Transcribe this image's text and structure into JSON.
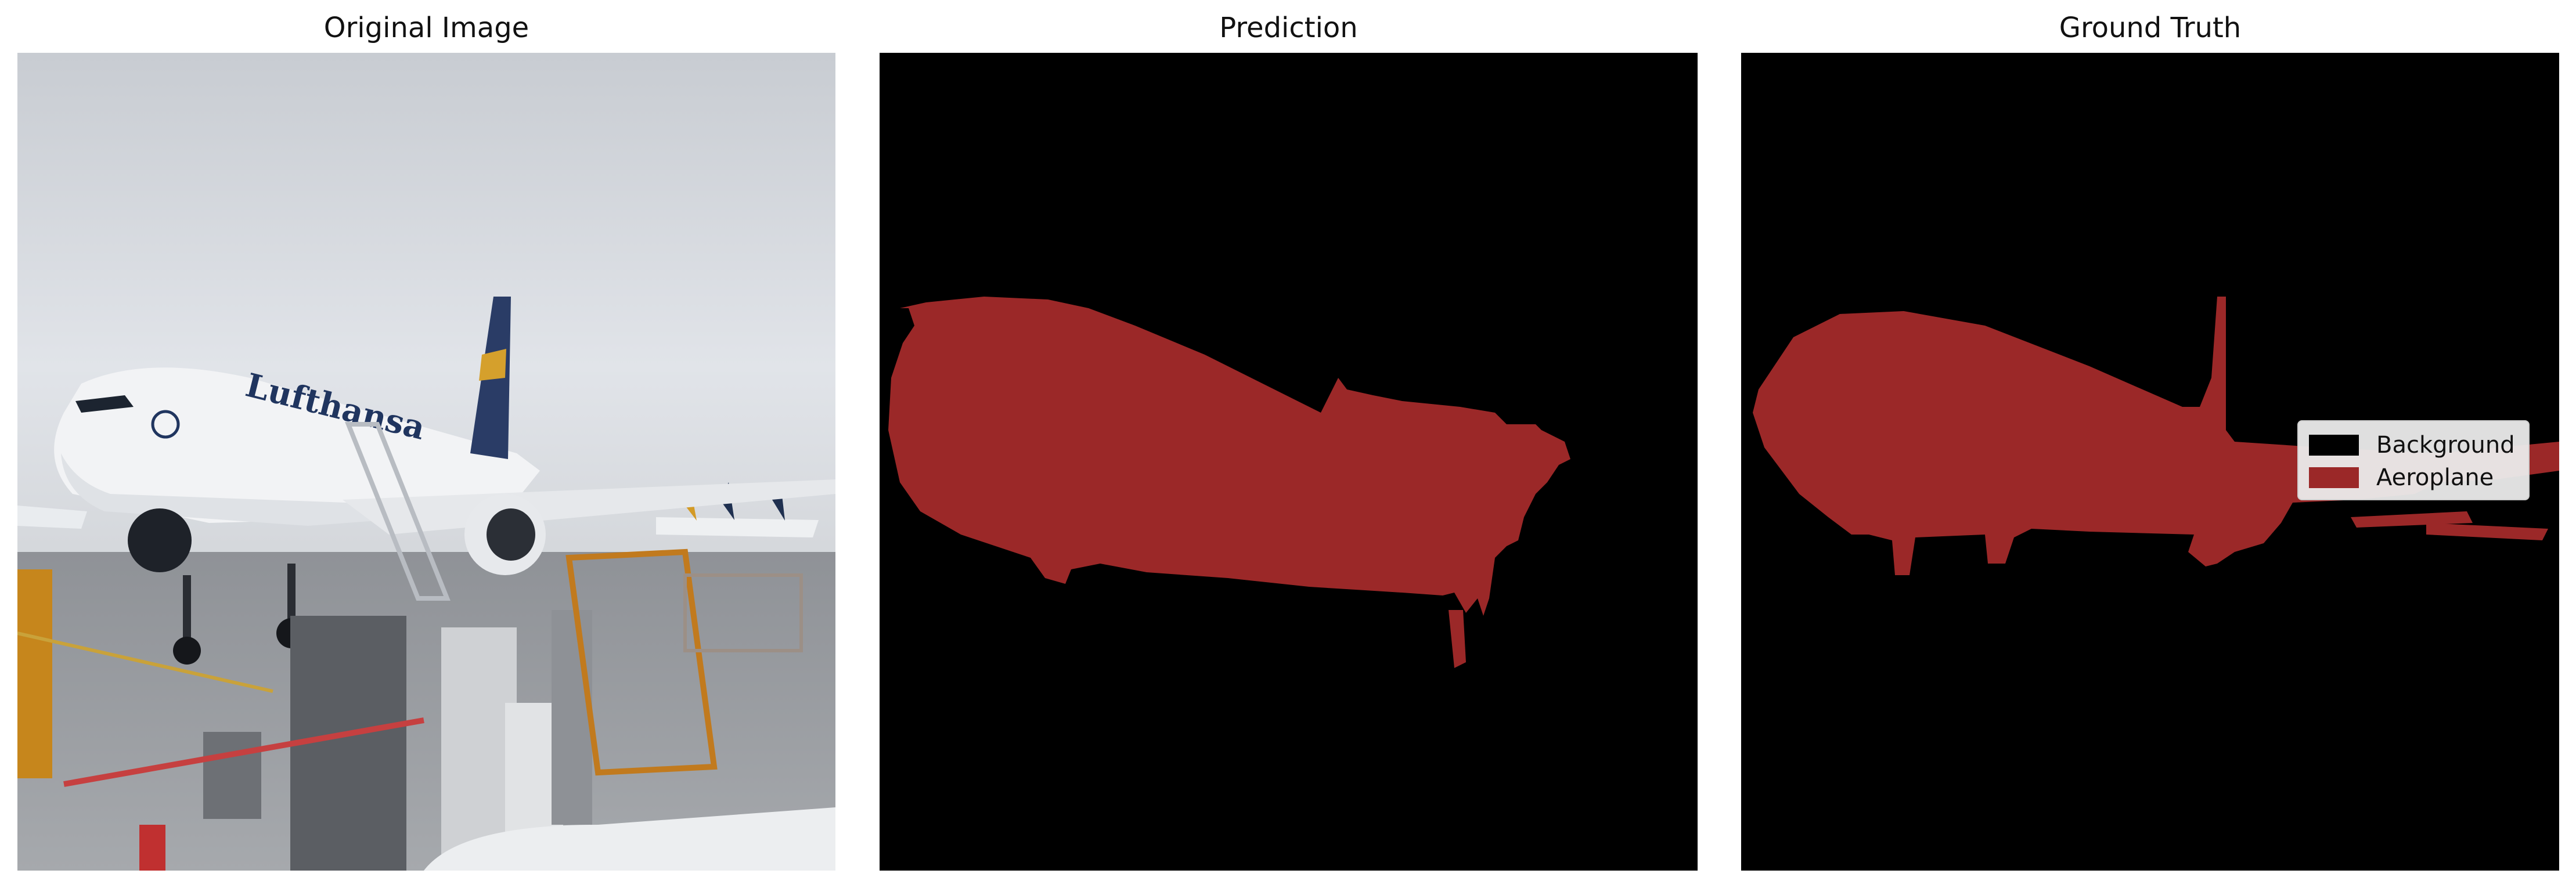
{
  "panels": [
    {
      "title": "Original Image"
    },
    {
      "title": "Prediction"
    },
    {
      "title": "Ground Truth"
    }
  ],
  "legend": {
    "items": [
      {
        "label": "Background",
        "color": "#000000"
      },
      {
        "label": "Aeroplane",
        "color": "#9b2828"
      }
    ]
  },
  "colors": {
    "mask_background": "#000000",
    "aeroplane": "#9b2828",
    "sky": "#e3e6ea",
    "tarmac": "#9a9da2"
  },
  "logo": {
    "text": "Lufthansa"
  }
}
